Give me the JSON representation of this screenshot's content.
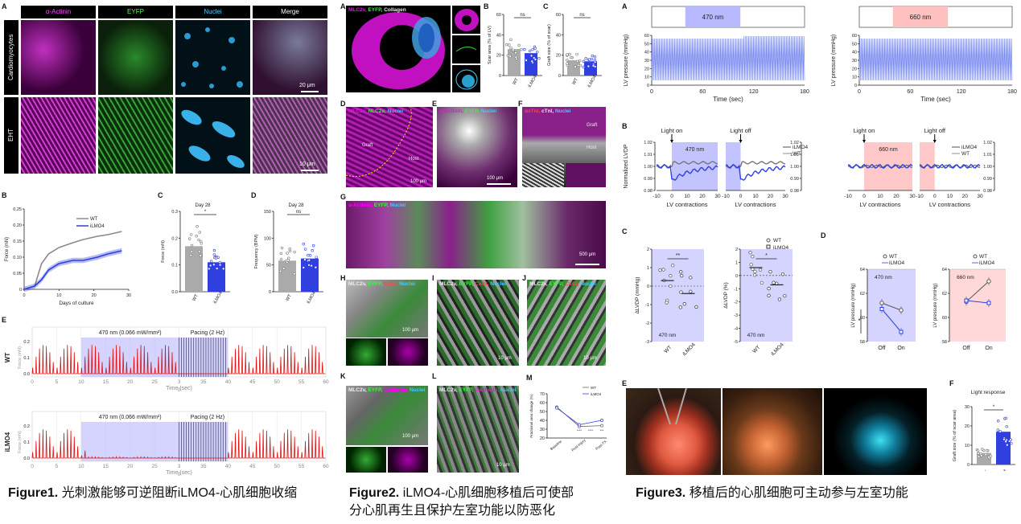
{
  "fig1": {
    "panels": {
      "a": "A",
      "b": "B",
      "c": "C",
      "d": "D",
      "e": "E"
    },
    "headers": [
      "α-Actinin",
      "EYFP",
      "Nuclei",
      "Merge"
    ],
    "rows": [
      "Cardiomyocytes",
      "EHT"
    ],
    "scalebars": [
      "20 μm",
      "10 μm"
    ],
    "b_ylabel": "Force (mN)",
    "b_xlabel": "Days of culture",
    "b_yticks": [
      "0.25",
      "0.20",
      "0.15",
      "0.10",
      "0.05",
      "0"
    ],
    "b_xticks": [
      "0",
      "10",
      "20",
      "30"
    ],
    "legend_wt": "WT",
    "legend_ilmo4": "iLMO4",
    "c_title": "Day 28",
    "c_ylabel": "Force (mN)",
    "c_yticks": [
      "0.3",
      "0.2",
      "0.1",
      "0.0"
    ],
    "c_sig": "*",
    "c_xt": [
      "WT",
      "iLMO4"
    ],
    "d_title": "Day 28",
    "d_ylabel": "Frequency (BPM)",
    "d_yticks": [
      "150",
      "100",
      "50",
      "0"
    ],
    "d_sig": "ns",
    "d_xt": [
      "WT",
      "iLMO4"
    ],
    "e_wt": "WT",
    "e_ilmo4": "iLMO4",
    "e_light": "470 nm (0.066 mW/mm²)",
    "e_pacing": "Pacing (2 Hz)",
    "e_ylabel": "Force (mN)",
    "e_xlabel": "Time (sec)",
    "e_xticks": [
      "0",
      "5",
      "10",
      "15",
      "20",
      "25",
      "3",
      "35",
      "40",
      "45",
      "50",
      "55",
      "60"
    ],
    "e_xticks2": [
      "0",
      "5",
      "5"
    ],
    "e_yticks": [
      "0.2",
      "0.1",
      "0.0"
    ],
    "caption_bold": "Figure1.",
    "caption_zh": "光刺激能够可逆阻断iLMO4-心肌细胞收缩"
  },
  "fig2": {
    "panels": [
      "A",
      "B",
      "C",
      "D",
      "E",
      "F",
      "G",
      "H",
      "I",
      "J",
      "K",
      "L",
      "M"
    ],
    "a_label": [
      "MLC2v,",
      "EYFP,",
      "Collagen"
    ],
    "b_ylabel": "Scar area (% of LV)",
    "b_sig": "ns",
    "b_yticks": [
      "60",
      "40",
      "20",
      "0"
    ],
    "b_xt": [
      "WT",
      "iLMO4"
    ],
    "c_ylabel": "Graft size (% of scar)",
    "c_sig": "ns",
    "c_yticks": [
      "60",
      "40",
      "20",
      "0"
    ],
    "c_xt": [
      "WT",
      "iLMO4"
    ],
    "d_label": [
      "MLC2v,",
      "NLC2a,",
      "Nuclei"
    ],
    "d_graft": "Graft",
    "d_host": "Host",
    "d_sb": "100 μm",
    "e_label": [
      "α-Actinin,",
      "EYFP,",
      "Nuclei"
    ],
    "e_sb": "100 μm",
    "f_label": [
      "αsTnl,",
      "cTnl,",
      "Nuclei"
    ],
    "f_graft": "Graft",
    "f_host": "Host",
    "g_label": [
      "α-Actinin,",
      "EYFP,",
      "Nuclei"
    ],
    "g_sb": "500 μm",
    "h_label": [
      "MLC2v,",
      "EYFP,",
      "Cx43,",
      "Nuclei"
    ],
    "h_sb": "100 μm",
    "i_label": [
      "MLC2v,",
      "EYFP,",
      "Cx43,",
      "Nuclei"
    ],
    "i_sb": "10 μm",
    "j_label": [
      "MLC2v,",
      "EYFP,",
      "Cx43,",
      "Nuclei"
    ],
    "j_sb": "10 μm",
    "k_label": [
      "MLC2v,",
      "EYFP,",
      "Cadherin,",
      "Nuclei"
    ],
    "k_sb": "100 μm",
    "l_label": [
      "MLC2v,",
      "EYFP,",
      "Cadherin,",
      "Nuclei"
    ],
    "l_sb": "10 μm",
    "m_ylabel": "Fractional area change (%)",
    "m_legend": [
      "WT",
      "iLMO4"
    ],
    "m_xt": [
      "Baseline",
      "Post-injury",
      "Post-TX"
    ],
    "m_sig": [
      "****",
      "****",
      "***"
    ],
    "caption_bold": "Figure2.",
    "caption_zh_1": "iLMO4-心肌细胞移植后可使部",
    "caption_zh_2": "分心肌再生且保护左室功能以防恶化"
  },
  "fig3": {
    "panels": [
      "A",
      "B",
      "C",
      "D",
      "E",
      "F"
    ],
    "a_light1": "470 nm",
    "a_light2": "660 nm",
    "a_ylabel": "LV pressure (mmHg)",
    "a_yticks": [
      "60",
      "50",
      "40",
      "30",
      "20",
      "10",
      "0"
    ],
    "a_xticks": [
      "0",
      "60",
      "120",
      "180"
    ],
    "a_xlabel": "Time (sec)",
    "b_annots": [
      "Light on",
      "Light off",
      "Light on",
      "Light off"
    ],
    "b_nm1": "470 nm",
    "b_nm2": "660 nm",
    "b_ylabel": "Normalized LVDP",
    "b_yticks": [
      "1.02",
      "1.01",
      "1.00",
      "0.99",
      "0.98"
    ],
    "b_xticks": [
      "-10",
      "0",
      "10",
      "20",
      "30"
    ],
    "b_xlabel": "LV contractions",
    "b_legend": [
      "iLMO4",
      "WT"
    ],
    "c_ylabel1": "ΔLVDP (mmHg)",
    "c_ylabel2": "ΔLVDP (%)",
    "c_sig1": "**",
    "c_sig2": "*",
    "c_nm": "470 nm",
    "c_yticks1": [
      "2",
      "1",
      "0",
      "-1",
      "-2",
      "-3"
    ],
    "c_yticks2": [
      "2",
      "1",
      "0",
      "-1",
      "-2",
      "-3",
      "-4",
      "-5"
    ],
    "c_xt": [
      "WT",
      "iLMO4"
    ],
    "c_legend": [
      "WT",
      "iLMO4"
    ],
    "d_ylabel": "LV pressure (mmHg)",
    "d_nm1": "470 nm",
    "d_nm2": "660 nm",
    "d_yticks": [
      "64",
      "62",
      "60",
      "58"
    ],
    "d_xt": [
      "Off",
      "On"
    ],
    "d_legend": [
      "WT",
      "iLMO4"
    ],
    "d_sig": "*",
    "f_title": "Light response",
    "f_ylabel": "Graft size (% of scar area)",
    "f_yticks": [
      "30",
      "20",
      "10",
      "0"
    ],
    "f_sig": "*",
    "f_xt": [
      "-",
      "+"
    ],
    "caption_bold": "Figure3.",
    "caption_zh": "移植后的心肌细胞可主动参与左室功能"
  },
  "chart_data": [
    {
      "type": "line",
      "title": "Fig1B",
      "xlabel": "Days of culture",
      "ylabel": "Force (mN)",
      "xlim": [
        0,
        30
      ],
      "ylim": [
        0,
        0.25
      ],
      "series": [
        {
          "name": "WT",
          "x": [
            0,
            3,
            5,
            7,
            10,
            14,
            17,
            21,
            24,
            28
          ],
          "y": [
            0,
            0.01,
            0.08,
            0.11,
            0.13,
            0.145,
            0.155,
            0.165,
            0.17,
            0.18
          ]
        },
        {
          "name": "iLMO4",
          "x": [
            0,
            3,
            5,
            7,
            10,
            14,
            17,
            21,
            24,
            28
          ],
          "y": [
            0,
            0.01,
            0.03,
            0.06,
            0.08,
            0.09,
            0.09,
            0.1,
            0.11,
            0.12
          ]
        }
      ]
    },
    {
      "type": "bar",
      "title": "Fig1C Day 28",
      "categories": [
        "WT",
        "iLMO4"
      ],
      "values": [
        0.17,
        0.11
      ],
      "ylabel": "Force (mN)",
      "ylim": [
        0,
        0.3
      ]
    },
    {
      "type": "bar",
      "title": "Fig1D Day 28",
      "categories": [
        "WT",
        "iLMO4"
      ],
      "values": [
        58,
        62
      ],
      "ylabel": "Frequency (BPM)",
      "ylim": [
        0,
        150
      ]
    },
    {
      "type": "bar",
      "title": "Fig2B",
      "categories": [
        "WT",
        "iLMO4"
      ],
      "values": [
        26,
        22
      ],
      "ylabel": "Scar area (% of LV)",
      "ylim": [
        0,
        60
      ]
    },
    {
      "type": "bar",
      "title": "Fig2C",
      "categories": [
        "WT",
        "iLMO4"
      ],
      "values": [
        15,
        14
      ],
      "ylabel": "Graft size (% of scar)",
      "ylim": [
        0,
        60
      ]
    },
    {
      "type": "line",
      "title": "Fig2M",
      "categories": [
        "Baseline",
        "Post-injury",
        "Post-TX"
      ],
      "series": [
        {
          "name": "WT",
          "values": [
            55,
            33,
            34
          ]
        },
        {
          "name": "iLMO4",
          "values": [
            54,
            35,
            40
          ]
        }
      ]
    },
    {
      "type": "bar",
      "title": "Fig3C mmHg",
      "categories": [
        "WT",
        "iLMO4"
      ],
      "values": [
        0.3,
        -0.4
      ],
      "ylabel": "ΔLVDP (mmHg)",
      "ylim": [
        -3,
        2
      ]
    },
    {
      "type": "bar",
      "title": "Fig3C %",
      "categories": [
        "WT",
        "iLMO4"
      ],
      "values": [
        0.6,
        -0.7
      ],
      "ylabel": "ΔLVDP (%)",
      "ylim": [
        -5,
        2
      ]
    },
    {
      "type": "line",
      "title": "Fig3D 470 nm",
      "categories": [
        "Off",
        "On"
      ],
      "series": [
        {
          "name": "WT",
          "values": [
            61.2,
            60.6
          ]
        },
        {
          "name": "iLMO4",
          "values": [
            60.7,
            58.8
          ]
        }
      ],
      "ylim": [
        58,
        64
      ]
    },
    {
      "type": "line",
      "title": "Fig3D 660 nm",
      "categories": [
        "Off",
        "On"
      ],
      "series": [
        {
          "name": "WT",
          "values": [
            61.3,
            63.0
          ]
        },
        {
          "name": "iLMO4",
          "values": [
            61.4,
            61.2
          ]
        }
      ],
      "ylim": [
        58,
        64
      ]
    },
    {
      "type": "bar",
      "title": "Fig3F Light response",
      "categories": [
        "-",
        "+"
      ],
      "values": [
        6,
        17
      ],
      "ylabel": "Graft size (% of scar area)",
      "ylim": [
        0,
        30
      ]
    }
  ],
  "colors": {
    "wt": "#8a8a8a",
    "ilmo4": "#2f3fe0",
    "blue_light": "#b8b8ff",
    "red_light": "#ffc0c0",
    "magenta": "#e000e0",
    "trace": "#e01010"
  }
}
